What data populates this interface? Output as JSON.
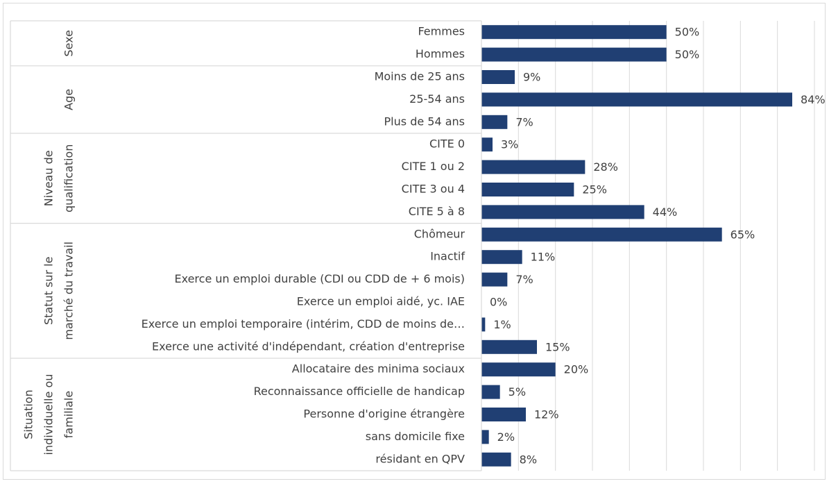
{
  "chart_data": {
    "type": "bar",
    "orientation": "horizontal",
    "color": "#203f73",
    "grid": true,
    "xlim": [
      0,
      90
    ],
    "xticks": [
      0,
      10,
      20,
      30,
      40,
      50,
      60,
      70,
      80,
      90
    ],
    "groups": [
      {
        "label": [
          "Sexe"
        ],
        "categories": [
          "Femmes",
          "Hommes"
        ],
        "values": [
          50,
          50
        ],
        "value_labels": [
          "50%",
          "50%"
        ]
      },
      {
        "label": [
          "Age"
        ],
        "categories": [
          "Moins de 25 ans",
          "25-54 ans",
          "Plus de 54 ans"
        ],
        "values": [
          9,
          84,
          7
        ],
        "value_labels": [
          "9%",
          "84%",
          "7%"
        ]
      },
      {
        "label": [
          "Niveau de",
          "qualification"
        ],
        "categories": [
          "CITE 0",
          "CITE 1 ou 2",
          "CITE 3 ou 4",
          "CITE 5 à 8"
        ],
        "values": [
          3,
          28,
          25,
          44
        ],
        "value_labels": [
          "3%",
          "28%",
          "25%",
          "44%"
        ]
      },
      {
        "label": [
          "Statut sur le",
          "marché du travail"
        ],
        "categories": [
          "Chômeur",
          "Inactif",
          "Exerce un emploi durable (CDI ou CDD de + 6 mois)",
          "Exerce un emploi aidé, yc. IAE",
          "Exerce un emploi temporaire (intérim, CDD de moins de…",
          "Exerce une activité d'indépendant, création d'entreprise"
        ],
        "values": [
          65,
          11,
          7,
          0,
          1,
          15
        ],
        "value_labels": [
          "65%",
          "11%",
          "7%",
          "0%",
          "1%",
          "15%"
        ]
      },
      {
        "label": [
          "Situation",
          "individuelle ou",
          "familiale"
        ],
        "categories": [
          "Allocataire des minima sociaux",
          "Reconnaissance officielle de handicap",
          "Personne d'origine étrangère",
          "sans domicile fixe",
          "résidant en QPV"
        ],
        "values": [
          20,
          5,
          12,
          2,
          8
        ],
        "value_labels": [
          "20%",
          "5%",
          "12%",
          "2%",
          "8%"
        ]
      }
    ]
  }
}
